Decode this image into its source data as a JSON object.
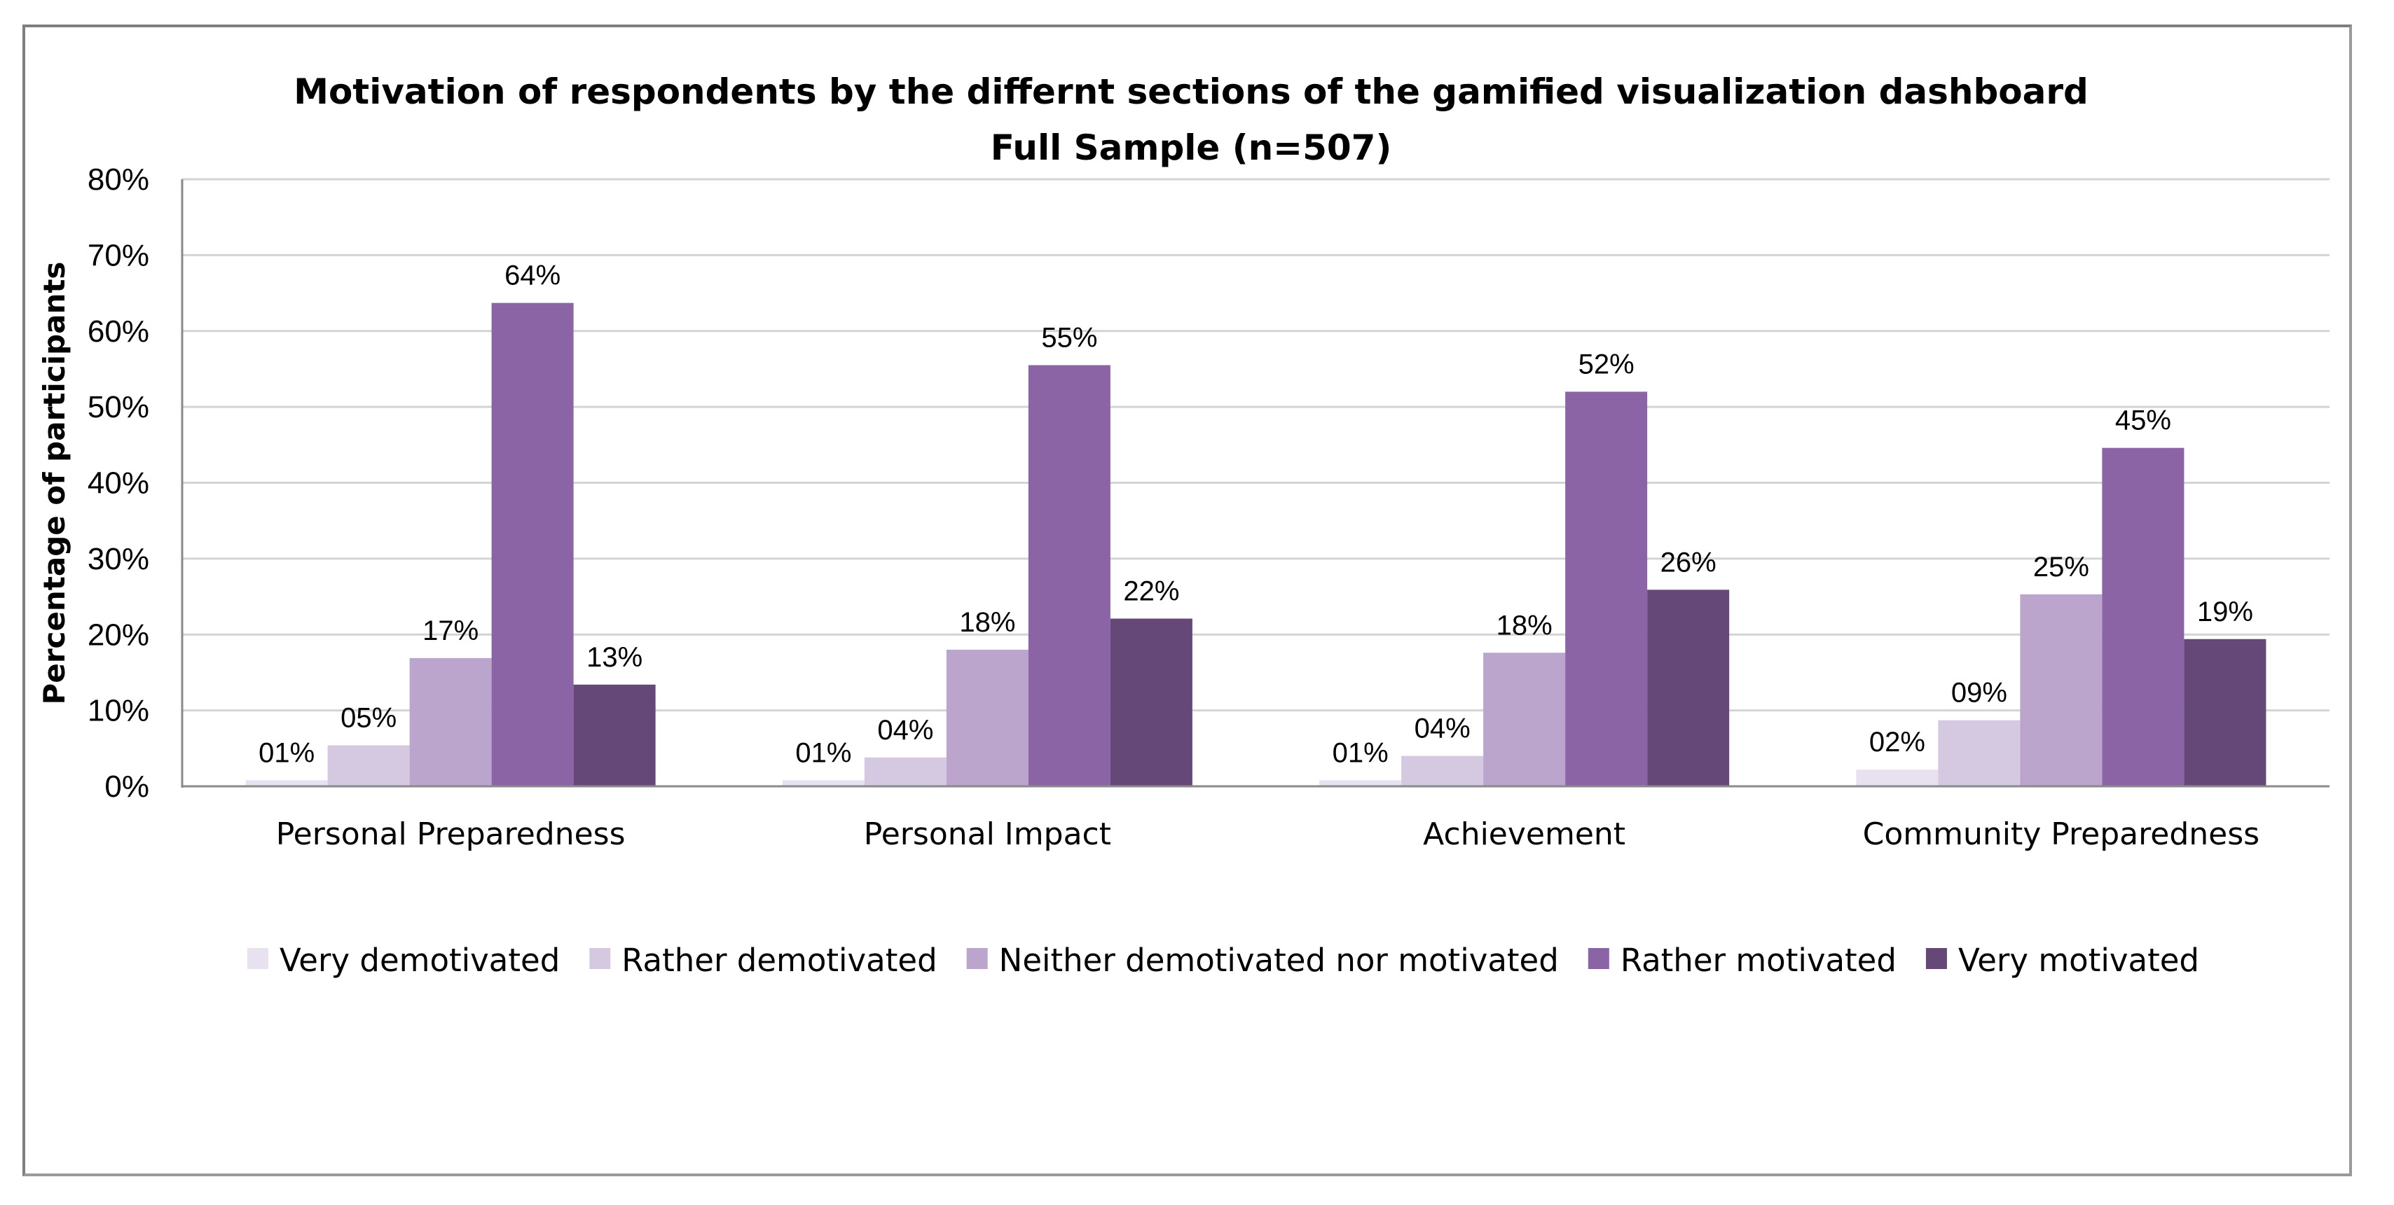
{
  "chart_data": {
    "type": "bar",
    "title": "Motivation of respondents by the differnt sections of the gamified visualization dashboard",
    "subtitle": "Full Sample (n=507)",
    "xlabel": "",
    "ylabel": "Percentage of participants",
    "ylim": [
      0,
      80
    ],
    "yticks": [
      "0%",
      "10%",
      "20%",
      "30%",
      "40%",
      "50%",
      "60%",
      "70%",
      "80%"
    ],
    "grid": true,
    "legend_position": "bottom",
    "categories": [
      "Personal Preparedness",
      "Personal Impact",
      "Achievement",
      "Community Preparedness"
    ],
    "series": [
      {
        "name": "Very demotivated",
        "color": "#e8e1ef",
        "values": [
          0.8,
          0.8,
          0.8,
          2.2
        ],
        "labels": [
          "01%",
          "01%",
          "01%",
          "02%"
        ]
      },
      {
        "name": "Rather demotivated",
        "color": "#d5c8e1",
        "values": [
          5.4,
          3.8,
          4.0,
          8.7
        ],
        "labels": [
          "05%",
          "04%",
          "04%",
          "09%"
        ]
      },
      {
        "name": "Neither demotivated nor motivated",
        "color": "#bba5cc",
        "values": [
          16.9,
          18.0,
          17.6,
          25.3
        ],
        "labels": [
          "17%",
          "18%",
          "18%",
          "25%"
        ]
      },
      {
        "name": "Rather motivated",
        "color": "#8b64a5",
        "values": [
          63.7,
          55.5,
          52.0,
          44.6
        ],
        "labels": [
          "64%",
          "55%",
          "52%",
          "45%"
        ]
      },
      {
        "name": "Very motivated",
        "color": "#664878",
        "values": [
          13.4,
          22.1,
          25.9,
          19.4
        ],
        "labels": [
          "13%",
          "22%",
          "26%",
          "19%"
        ]
      }
    ]
  }
}
